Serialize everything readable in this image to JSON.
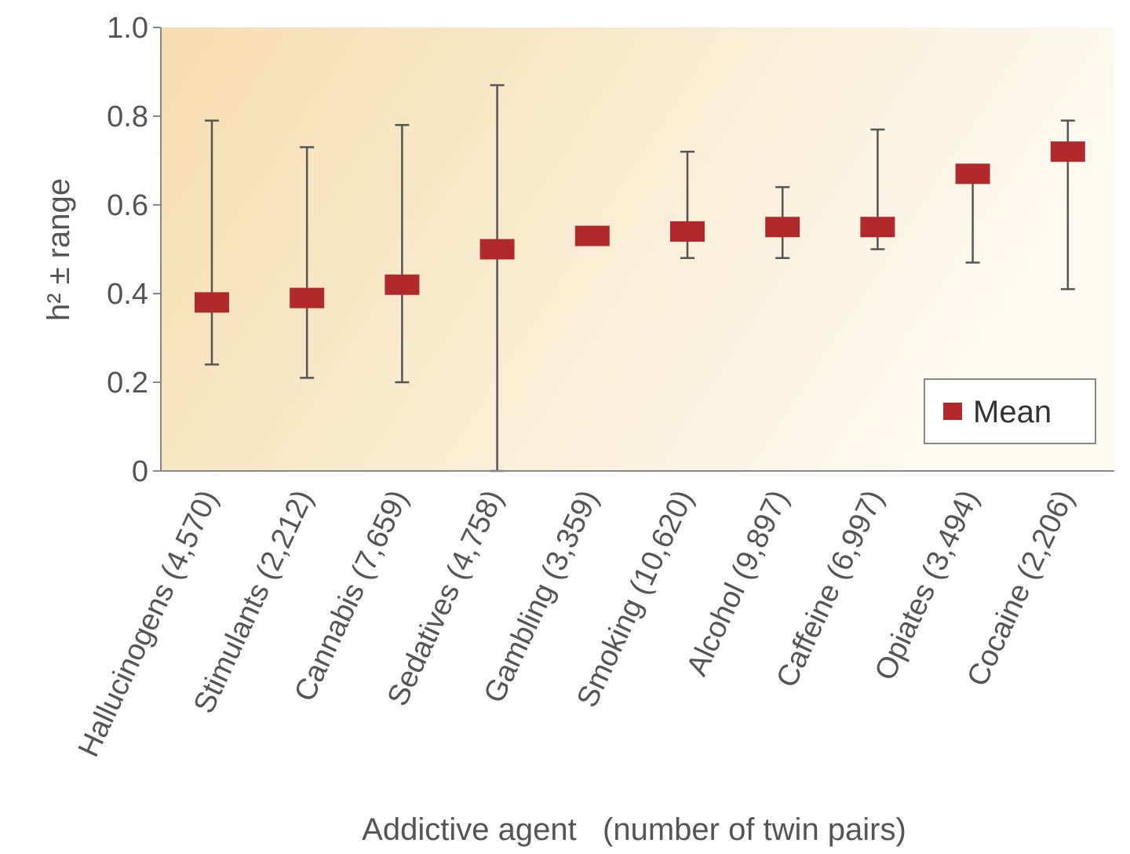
{
  "chart_data": {
    "type": "scatter",
    "title": "",
    "ylabel": "h² ± range",
    "xlabel": "Addictive agent   (number of twin pairs)",
    "ylim": [
      0,
      1.0
    ],
    "yticks": [
      0,
      0.2,
      0.4,
      0.6,
      0.8,
      1.0
    ],
    "ytick_labels": [
      "0",
      "0.2",
      "0.4",
      "0.6",
      "0.8",
      "1.0"
    ],
    "grid": false,
    "legend": {
      "position": "bottom-right",
      "entries": [
        "Mean"
      ]
    },
    "categories": [
      "Hallucinogens (4,570)",
      "Stimulants (2,212)",
      "Cannabis (7,659)",
      "Sedatives (4,758)",
      "Gambling (3,359)",
      "Smoking (10,620)",
      "Alcohol (9,897)",
      "Caffeine (6,997)",
      "Opiates (3,494)",
      "Cocaine (2,206)"
    ],
    "series": [
      {
        "name": "Mean",
        "values": [
          0.38,
          0.39,
          0.42,
          0.5,
          0.53,
          0.54,
          0.55,
          0.55,
          0.67,
          0.72
        ],
        "range_low": [
          0.24,
          0.21,
          0.2,
          0.0,
          null,
          0.48,
          0.48,
          0.5,
          0.47,
          0.41
        ],
        "range_high": [
          0.79,
          0.73,
          0.78,
          0.87,
          null,
          0.72,
          0.64,
          0.77,
          0.67,
          0.79
        ]
      }
    ],
    "colors": {
      "marker": "#b2292b",
      "error_bar": "#555555",
      "axis": "#888888",
      "background_left": "#f6ddb0",
      "background_right": "#fdfaf1"
    }
  }
}
